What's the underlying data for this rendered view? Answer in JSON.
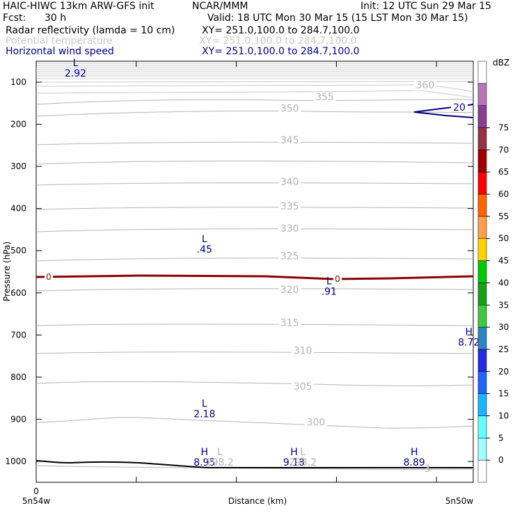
{
  "header": {
    "title": "HAIC-HIWC 13km ARW-GFS init",
    "org": "NCAR/MMM",
    "init": "Init: 12 UTC Sun 29 Mar 15",
    "fcst_label": "Fcst:",
    "fcst_value": "30 h",
    "valid": "Valid: 18 UTC Mon 30 Mar 15 (15 LST Mon 30 Mar 15)",
    "fields": [
      {
        "name": "Radar reflectivity (lamda = 10 cm)",
        "xy": "XY= 251.0,100.0 to 284.7,100.0"
      },
      {
        "name": "Potential temperature",
        "xy": "XY= 251.0,100.0 to 284.7,100.0"
      },
      {
        "name": "Horizontal wind speed",
        "xy": "XY= 251.0,100.0 to 284.7,100.0"
      }
    ]
  },
  "chart_data": {
    "type": "contour cross-section",
    "ylabel": "Pressure (hPa)",
    "xlabel": "Distance (km)",
    "x_ticks": [
      "0"
    ],
    "x_end_labels": {
      "left": "5n54w",
      "right": "5n50w"
    },
    "y_ticks": [
      100,
      200,
      300,
      400,
      500,
      600,
      700,
      800,
      900,
      1000
    ],
    "y_scale": "linear (pressure increasing downward)",
    "colorbar": {
      "unit": "dBZ",
      "levels": [
        0,
        5,
        10,
        15,
        20,
        25,
        30,
        35,
        40,
        45,
        50,
        55,
        60,
        65,
        70,
        75
      ],
      "colors": [
        "#ffffff",
        "#a0ffff",
        "#66ffff",
        "#1eb4ff",
        "#1e64ff",
        "#2828e6",
        "#2a86c3",
        "#3ec83e",
        "#19a019",
        "#00c800",
        "#ffd200",
        "#ffa050",
        "#ff6400",
        "#ff0000",
        "#a00000",
        "#963246",
        "#8c3c8c",
        "#b478b4",
        "#ffffff"
      ]
    },
    "theta_labels": [
      {
        "value": "360",
        "x_frac": 0.89,
        "p": 115
      },
      {
        "value": "355",
        "x_frac": 0.66,
        "p": 143
      },
      {
        "value": "350",
        "x_frac": 0.58,
        "p": 170
      },
      {
        "value": "345",
        "x_frac": 0.58,
        "p": 245
      },
      {
        "value": "340",
        "x_frac": 0.58,
        "p": 344
      },
      {
        "value": "335",
        "x_frac": 0.58,
        "p": 402
      },
      {
        "value": "330",
        "x_frac": 0.58,
        "p": 455
      },
      {
        "value": "325",
        "x_frac": 0.58,
        "p": 520
      },
      {
        "value": "320",
        "x_frac": 0.58,
        "p": 600
      },
      {
        "value": "315",
        "x_frac": 0.58,
        "p": 679
      },
      {
        "value": "310",
        "x_frac": 0.61,
        "p": 745
      },
      {
        "value": "305",
        "x_frac": 0.61,
        "p": 830
      },
      {
        "value": "300",
        "x_frac": 0.64,
        "p": 915
      },
      {
        "value": "298.2",
        "x_frac": 0.5,
        "p": 1005
      }
    ],
    "wind_extrema": [
      {
        "kind": "L",
        "value": "2.92",
        "x_frac": 0.09,
        "p": 62
      },
      {
        "kind": "L",
        "value": ".45",
        "x_frac": 0.385,
        "p": 480
      },
      {
        "kind": "L",
        "value": ".91",
        "x_frac": 0.67,
        "p": 580
      },
      {
        "kind": "H",
        "value": "8.72",
        "x_frac": 0.99,
        "p": 700
      },
      {
        "kind": "L",
        "value": "2.18",
        "x_frac": 0.385,
        "p": 870
      },
      {
        "kind": "H",
        "value": "8.95",
        "x_frac": 0.385,
        "p": 985
      },
      {
        "kind": "H",
        "value": "9.18",
        "x_frac": 0.59,
        "p": 985
      },
      {
        "kind": "H",
        "value": "8.89",
        "x_frac": 0.865,
        "p": 985
      }
    ],
    "theta_extrema": [
      {
        "kind": "L",
        "value": "298.2",
        "x_frac": 0.42,
        "p": 985
      },
      {
        "kind": "L",
        "value": "298.2",
        "x_frac": 0.61,
        "p": 985
      },
      {
        "kind": "",
        "value": "3",
        "x_frac": 0.895,
        "p": 1000
      }
    ],
    "wind_contour_label": "20",
    "freezing_contour_label": "0",
    "freezing_level_hPa": 560
  }
}
